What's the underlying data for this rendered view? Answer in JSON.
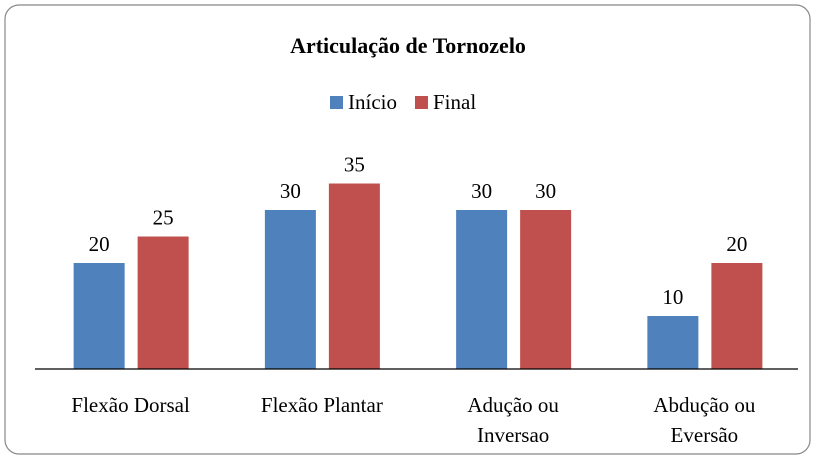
{
  "chart_data": {
    "type": "bar",
    "title": "Articulação de Tornozelo",
    "categories": [
      "Flexão Dorsal",
      "Flexão Plantar",
      "Adução ou\nInversao",
      "Abdução ou\nEversão"
    ],
    "series": [
      {
        "name": "Início",
        "color": "#4f81bd",
        "values": [
          20,
          30,
          30,
          10
        ]
      },
      {
        "name": "Final",
        "color": "#c0504d",
        "values": [
          25,
          35,
          30,
          20
        ]
      }
    ],
    "ylim": [
      0,
      40
    ],
    "grid": false,
    "legend": "top"
  }
}
